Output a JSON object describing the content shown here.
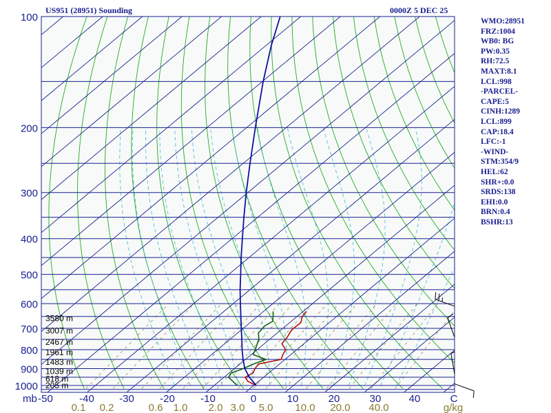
{
  "header": {
    "station": "US951 (28951) Sounding",
    "time": "0000Z  5 DEC 25"
  },
  "stats": [
    "WMO:28951",
    "FRZ:1004",
    "WB0: BG",
    "PW:0.35",
    "RH:72.5",
    "MAXT:8.1",
    "LCL:998",
    "-PARCEL-",
    "CAPE:5",
    "CINH:1289",
    "LCL:899",
    "CAP:18.4",
    "LFC:-1",
    "-WIND-",
    "STM:354/9",
    "HEL:62",
    "SHR+:0.0",
    "SRDS:138",
    "EHI:0.0",
    "BRN:0.4",
    "BSHR:13"
  ],
  "colors": {
    "frame": "#1a2090",
    "isobar": "#1a2090",
    "isotherm": "#1a2090",
    "dry_adiabat": "#22aa22",
    "moist_adiabat": "#55bbdd",
    "mixing_ratio": "#9a8a55",
    "temperature": "#b01010",
    "dewpoint": "#106010",
    "parcel": "#1010a0",
    "axis_text": "#1a2090",
    "mixing_ratio_text": "#8a7a30",
    "plot_bg": "#f7faf8"
  },
  "chart_data": {
    "type": "skew-t log-p",
    "pressure_axis": {
      "unit_label": "mb",
      "range": [
        100,
        1000
      ],
      "scale": "log",
      "ticks": [
        "100",
        "200",
        "300",
        "400",
        "500",
        "600",
        "700",
        "800",
        "900",
        "1000"
      ]
    },
    "temperature_axis": {
      "range": [
        -50,
        50
      ],
      "ticks": [
        "-50",
        "-40",
        "-30",
        "-20",
        "-10",
        "0",
        "10",
        "20",
        "30",
        "40",
        "C"
      ]
    },
    "mixing_ratio_labels": [
      "0.1",
      "0.2",
      "0.6",
      "1.0",
      "2.0",
      "3.0",
      "5.0",
      "10.0",
      "20.0",
      "40.0",
      "g/kg"
    ],
    "height_labels": [
      {
        "text": "3580 m",
        "p": 658
      },
      {
        "text": "3007 m",
        "p": 710
      },
      {
        "text": "2467 m",
        "p": 763
      },
      {
        "text": "1961 m",
        "p": 814
      },
      {
        "text": "1483 m",
        "p": 865
      },
      {
        "text": "1039 m",
        "p": 915
      },
      {
        "text": "618 m",
        "p": 959
      },
      {
        "text": "205 m",
        "p": 1000
      }
    ],
    "series": [
      {
        "name": "temperature",
        "points": [
          {
            "p": 1000,
            "t": 0.6
          },
          {
            "p": 975,
            "t": -2.7
          },
          {
            "p": 950,
            "t": -4.7
          },
          {
            "p": 925,
            "t": -4.0
          },
          {
            "p": 900,
            "t": -4.8
          },
          {
            "p": 875,
            "t": -5.3
          },
          {
            "p": 850,
            "t": -1.0
          },
          {
            "p": 825,
            "t": -2.0
          },
          {
            "p": 800,
            "t": -2.8
          },
          {
            "p": 770,
            "t": -5.6
          },
          {
            "p": 740,
            "t": -6.2
          },
          {
            "p": 710,
            "t": -7.2
          },
          {
            "p": 700,
            "t": -7.3
          },
          {
            "p": 675,
            "t": -7.2
          },
          {
            "p": 650,
            "t": -8.7
          },
          {
            "p": 630,
            "t": -9.1
          }
        ]
      },
      {
        "name": "dewpoint",
        "points": [
          {
            "p": 1000,
            "t": -4.2
          },
          {
            "p": 975,
            "t": -6.5
          },
          {
            "p": 950,
            "t": -8.9
          },
          {
            "p": 925,
            "t": -9.5
          },
          {
            "p": 900,
            "t": -7.8
          },
          {
            "p": 875,
            "t": -6.6
          },
          {
            "p": 850,
            "t": -4.8
          },
          {
            "p": 825,
            "t": -9.5
          },
          {
            "p": 800,
            "t": -10.5
          },
          {
            "p": 750,
            "t": -12.7
          },
          {
            "p": 720,
            "t": -14.8
          },
          {
            "p": 690,
            "t": -15.3
          },
          {
            "p": 670,
            "t": -14.7
          },
          {
            "p": 645,
            "t": -16.4
          },
          {
            "p": 630,
            "t": -17.6
          }
        ]
      },
      {
        "name": "parcel",
        "points": [
          {
            "p": 1000,
            "t": 0.6
          },
          {
            "p": 950,
            "t": -3.6
          },
          {
            "p": 900,
            "t": -7.4
          },
          {
            "p": 850,
            "t": -10.6
          },
          {
            "p": 800,
            "t": -13.8
          },
          {
            "p": 750,
            "t": -17.0
          },
          {
            "p": 700,
            "t": -20.5
          },
          {
            "p": 650,
            "t": -24.2
          },
          {
            "p": 600,
            "t": -28.2
          },
          {
            "p": 550,
            "t": -32.5
          },
          {
            "p": 500,
            "t": -37.0
          },
          {
            "p": 450,
            "t": -42.0
          },
          {
            "p": 400,
            "t": -47.4
          },
          {
            "p": 350,
            "t": -53.5
          },
          {
            "p": 300,
            "t": -60.4
          },
          {
            "p": 250,
            "t": -68.3
          },
          {
            "p": 200,
            "t": -77.8
          },
          {
            "p": 150,
            "t": -89.8
          },
          {
            "p": 120,
            "t": -98.6
          },
          {
            "p": 100,
            "t": -105.2
          }
        ]
      }
    ],
    "wind_barbs": [
      {
        "p": 610,
        "dir": 290,
        "speed_kt": 25
      },
      {
        "p": 740,
        "dir": 340,
        "speed_kt": 10
      },
      {
        "p": 930,
        "dir": 350,
        "speed_kt": 5
      },
      {
        "p": 990,
        "dir": 110,
        "speed_kt": 10
      }
    ],
    "grid": true
  }
}
